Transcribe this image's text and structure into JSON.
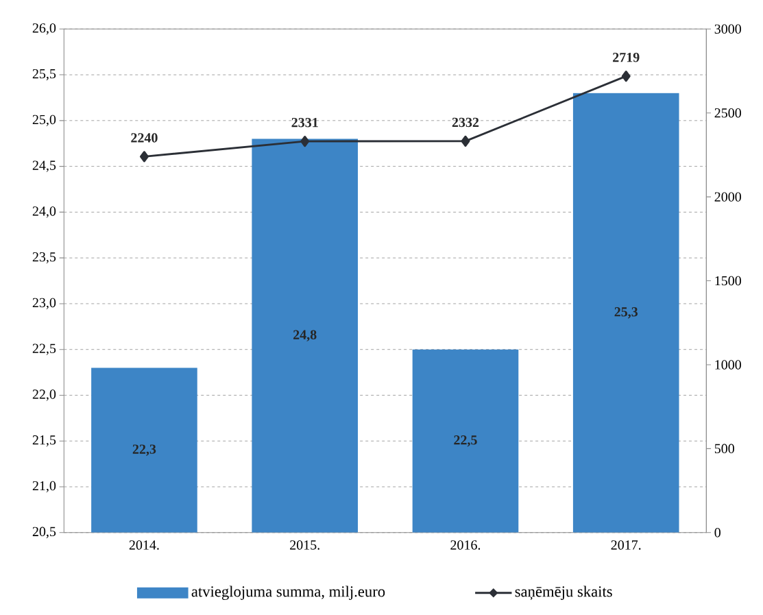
{
  "chart_data": {
    "type": "bar",
    "categories": [
      "2014.",
      "2015.",
      "2016.",
      "2017."
    ],
    "series": [
      {
        "name": "atvieglojuma summa, milj.euro",
        "color": "#3d85c6",
        "values": [
          22.3,
          24.8,
          22.5,
          25.3
        ],
        "value_labels": [
          "22,3",
          "24,8",
          "22,5",
          "25,3"
        ]
      },
      {
        "name": "saņēmēju skaits",
        "type": "line",
        "axis": "y2",
        "color": "#2b2f36",
        "marker": "diamond",
        "values": [
          2240,
          2331,
          2332,
          2719
        ],
        "value_labels": [
          "2240",
          "2331",
          "2332",
          "2719"
        ]
      }
    ],
    "ylim": [
      20.5,
      26.0
    ],
    "yticks": [
      {
        "value": 20.5,
        "label": "20,5"
      },
      {
        "value": 21.0,
        "label": "21,0"
      },
      {
        "value": 21.5,
        "label": "21,5"
      },
      {
        "value": 22.0,
        "label": "22,0"
      },
      {
        "value": 22.5,
        "label": "22,5"
      },
      {
        "value": 23.0,
        "label": "23,0"
      },
      {
        "value": 23.5,
        "label": "23,5"
      },
      {
        "value": 24.0,
        "label": "24,0"
      },
      {
        "value": 24.5,
        "label": "24,5"
      },
      {
        "value": 25.0,
        "label": "25,0"
      },
      {
        "value": 25.5,
        "label": "25,5"
      },
      {
        "value": 26.0,
        "label": "26,0"
      }
    ],
    "y2lim": [
      0,
      3000
    ],
    "y2ticks": [
      0,
      500,
      1000,
      1500,
      2000,
      2500,
      3000
    ],
    "grid": "y",
    "legend": "bottom"
  }
}
